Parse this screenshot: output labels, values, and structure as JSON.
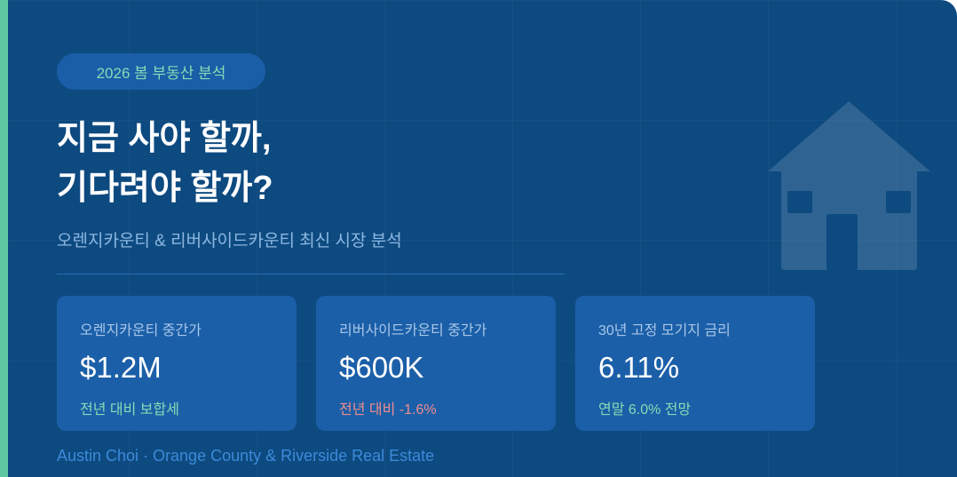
{
  "badge": "2026 봄 부동산 분석",
  "title": {
    "line1": "지금 사야 할까,",
    "line2": "기다려야 할까?"
  },
  "subtitle": "오렌지카운티 & 리버사이드카운티 최신 시장 분석",
  "cards": [
    {
      "label": "오렌지카운티 중간가",
      "value": "$1.2M",
      "note": "전년 대비 보합세",
      "note_color": "#86dbb5"
    },
    {
      "label": "리버사이드카운티 중간가",
      "value": "$600K",
      "note": "전년 대비 -1.6%",
      "note_color": "#f08c8c"
    },
    {
      "label": "30년 고정 모기지 금리",
      "value": "6.11%",
      "note": "연말 6.0% 전망",
      "note_color": "#86dbb5"
    }
  ],
  "footer": "Austin Choi · Orange County & Riverside Real Estate",
  "icons": {
    "decoration": "house-icon"
  },
  "colors": {
    "background": "#0d4a80",
    "accent": "#5ec9a0",
    "card": "#1b5fa8",
    "negative": "#f08c8c"
  }
}
